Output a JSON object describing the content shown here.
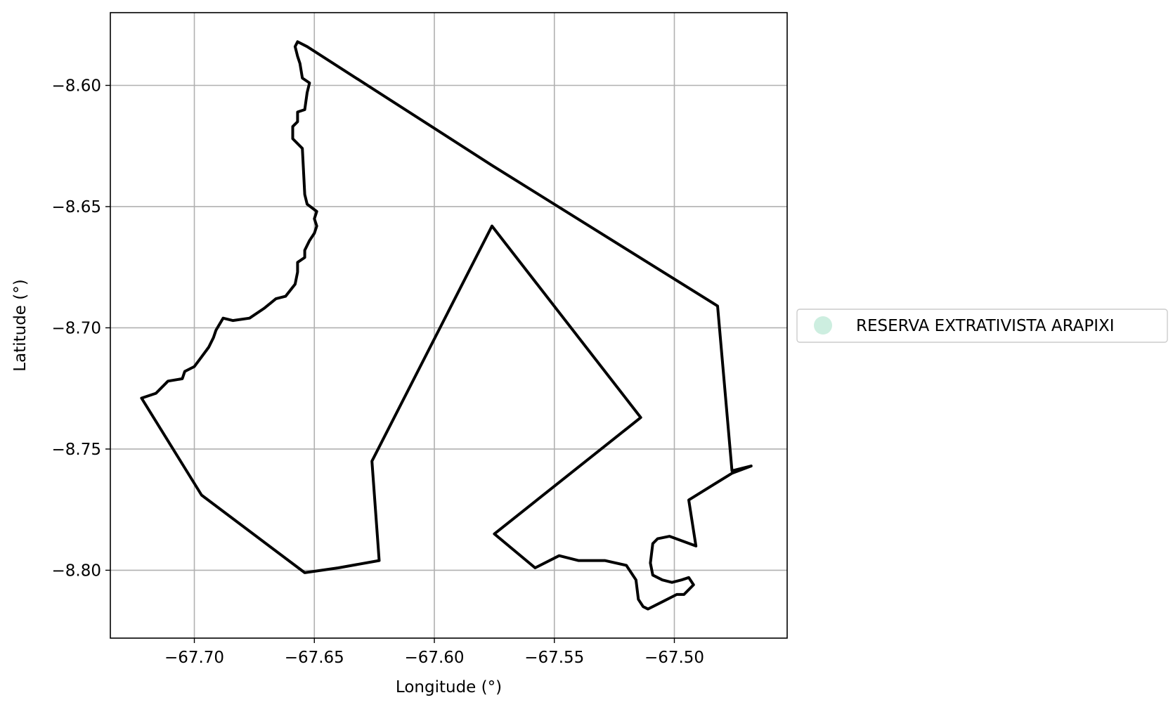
{
  "chart_data": {
    "type": "map",
    "xlabel": "Longitude (°)",
    "ylabel": "Latitude (°)",
    "xlim": [
      -67.735,
      -67.453
    ],
    "ylim": [
      -8.828,
      -8.57
    ],
    "xticks": [
      -67.7,
      -67.65,
      -67.6,
      -67.55,
      -67.5
    ],
    "xtick_labels": [
      "−67.70",
      "−67.65",
      "−67.60",
      "−67.55",
      "−67.50"
    ],
    "yticks": [
      -8.6,
      -8.65,
      -8.7,
      -8.75,
      -8.8
    ],
    "ytick_labels": [
      "−8.60",
      "−8.65",
      "−8.70",
      "−8.75",
      "−8.80"
    ],
    "grid": true,
    "legend_position": "outside-right",
    "series": [
      {
        "name": "RESERVA EXTRATIVISTA ARAPIXI",
        "marker_color": "#cdeee0",
        "edge_color": "#000000",
        "polygon": [
          [
            -67.657,
            -8.582
          ],
          [
            -67.653,
            -8.584
          ],
          [
            -67.576,
            -8.633
          ],
          [
            -67.482,
            -8.691
          ],
          [
            -67.476,
            -8.759
          ],
          [
            -67.468,
            -8.757
          ],
          [
            -67.476,
            -8.76
          ],
          [
            -67.494,
            -8.771
          ],
          [
            -67.491,
            -8.79
          ],
          [
            -67.502,
            -8.786
          ],
          [
            -67.507,
            -8.787
          ],
          [
            -67.509,
            -8.789
          ],
          [
            -67.51,
            -8.797
          ],
          [
            -67.509,
            -8.802
          ],
          [
            -67.505,
            -8.804
          ],
          [
            -67.501,
            -8.805
          ],
          [
            -67.497,
            -8.804
          ],
          [
            -67.494,
            -8.803
          ],
          [
            -67.492,
            -8.806
          ],
          [
            -67.496,
            -8.81
          ],
          [
            -67.499,
            -8.81
          ],
          [
            -67.505,
            -8.813
          ],
          [
            -67.511,
            -8.816
          ],
          [
            -67.513,
            -8.815
          ],
          [
            -67.515,
            -8.812
          ],
          [
            -67.516,
            -8.804
          ],
          [
            -67.52,
            -8.798
          ],
          [
            -67.529,
            -8.796
          ],
          [
            -67.54,
            -8.796
          ],
          [
            -67.548,
            -8.794
          ],
          [
            -67.558,
            -8.799
          ],
          [
            -67.575,
            -8.785
          ],
          [
            -67.514,
            -8.737
          ],
          [
            -67.576,
            -8.658
          ],
          [
            -67.626,
            -8.755
          ],
          [
            -67.623,
            -8.796
          ],
          [
            -67.64,
            -8.799
          ],
          [
            -67.654,
            -8.801
          ],
          [
            -67.697,
            -8.769
          ],
          [
            -67.722,
            -8.729
          ],
          [
            -67.716,
            -8.727
          ],
          [
            -67.711,
            -8.722
          ],
          [
            -67.705,
            -8.721
          ],
          [
            -67.704,
            -8.718
          ],
          [
            -67.7,
            -8.716
          ],
          [
            -67.697,
            -8.712
          ],
          [
            -67.694,
            -8.708
          ],
          [
            -67.692,
            -8.704
          ],
          [
            -67.691,
            -8.701
          ],
          [
            -67.688,
            -8.696
          ],
          [
            -67.684,
            -8.697
          ],
          [
            -67.677,
            -8.696
          ],
          [
            -67.671,
            -8.692
          ],
          [
            -67.666,
            -8.688
          ],
          [
            -67.662,
            -8.687
          ],
          [
            -67.658,
            -8.682
          ],
          [
            -67.657,
            -8.677
          ],
          [
            -67.657,
            -8.673
          ],
          [
            -67.654,
            -8.671
          ],
          [
            -67.654,
            -8.668
          ],
          [
            -67.652,
            -8.664
          ],
          [
            -67.65,
            -8.661
          ],
          [
            -67.649,
            -8.658
          ],
          [
            -67.65,
            -8.655
          ],
          [
            -67.649,
            -8.652
          ],
          [
            -67.653,
            -8.649
          ],
          [
            -67.654,
            -8.645
          ],
          [
            -67.655,
            -8.626
          ],
          [
            -67.659,
            -8.622
          ],
          [
            -67.659,
            -8.617
          ],
          [
            -67.657,
            -8.615
          ],
          [
            -67.657,
            -8.611
          ],
          [
            -67.654,
            -8.61
          ],
          [
            -67.653,
            -8.603
          ],
          [
            -67.652,
            -8.599
          ],
          [
            -67.655,
            -8.597
          ],
          [
            -67.656,
            -8.591
          ],
          [
            -67.657,
            -8.588
          ],
          [
            -67.658,
            -8.584
          ]
        ]
      }
    ]
  }
}
